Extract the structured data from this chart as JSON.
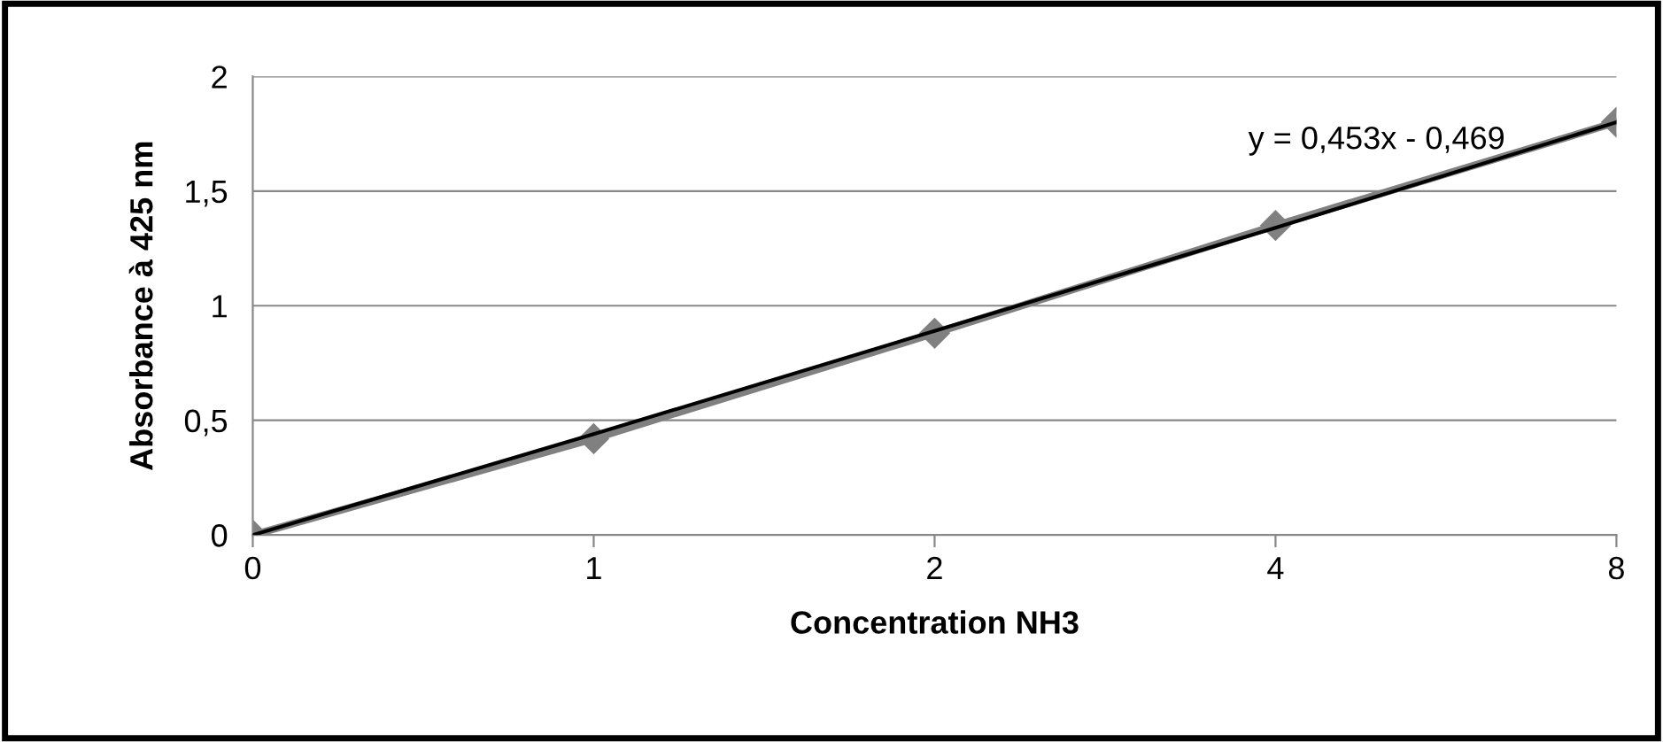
{
  "chart_data": {
    "type": "line",
    "xlabel": "Concentration NH3",
    "ylabel": "Absorbance à 425 nm",
    "categories": [
      "0",
      "1",
      "2",
      "4",
      "8"
    ],
    "series": [
      {
        "color": "#808080",
        "values": [
          0,
          0.42,
          0.88,
          1.35,
          1.8
        ],
        "marker": "diamond"
      },
      {
        "type": "line",
        "color": "#000000",
        "values": [
          0,
          0.44,
          0.89,
          1.34,
          1.8
        ],
        "marker": "none"
      }
    ],
    "ylim": [
      0,
      2
    ],
    "yticks": [
      0,
      {
        "value": 0.5,
        "label": "0,5"
      },
      1,
      {
        "value": 1.5,
        "label": "1,5"
      },
      2
    ],
    "grid": "y",
    "annotations": [
      "y = 0,453x - 0,469"
    ]
  }
}
